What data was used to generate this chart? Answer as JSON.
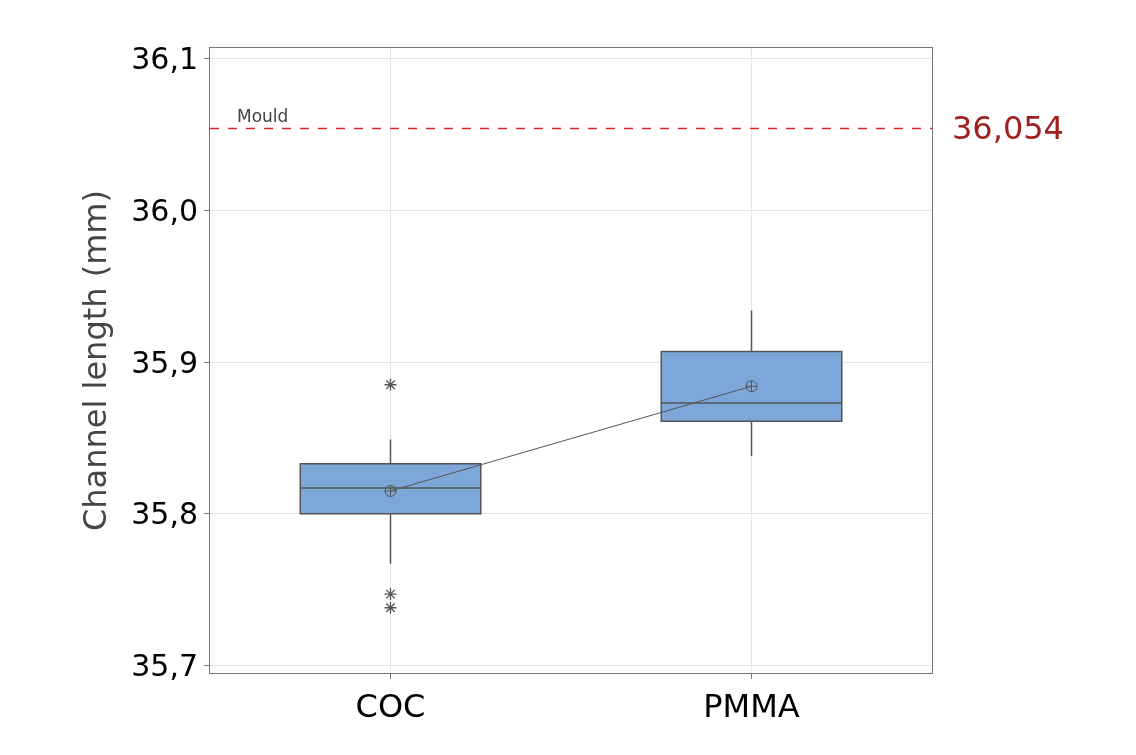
{
  "chart_data": {
    "type": "box",
    "ylabel": "Channel length (mm)",
    "categories": [
      "COC",
      "PMMA"
    ],
    "boxes": [
      {
        "low": 35.767,
        "q1": 35.8,
        "median": 35.817,
        "q3": 35.833,
        "high": 35.849,
        "mean": 35.815,
        "outliers": [
          35.885,
          35.747,
          35.738
        ]
      },
      {
        "low": 35.838,
        "q1": 35.861,
        "median": 35.873,
        "q3": 35.907,
        "high": 35.934,
        "mean": 35.884
      }
    ],
    "color": "#7da7d9",
    "series": [
      {
        "type": "line",
        "color": "#555555",
        "values": [
          35.815,
          35.884
        ]
      }
    ],
    "ylim": [
      35.695,
      36.107
    ],
    "yticks": [
      {
        "value": 35.7,
        "label": "35,7"
      },
      {
        "value": 35.8,
        "label": "35,8"
      },
      {
        "value": 35.9,
        "label": "35,9"
      },
      {
        "value": 36.0,
        "label": "36,0"
      },
      {
        "value": 36.1,
        "label": "36,1"
      }
    ],
    "ref_lines": [
      {
        "axis": "y",
        "value": 36.054,
        "label": "Mould",
        "color": "#d62728",
        "line_style": "dashed"
      }
    ],
    "annotations": [
      "36,054"
    ],
    "grid": true
  }
}
